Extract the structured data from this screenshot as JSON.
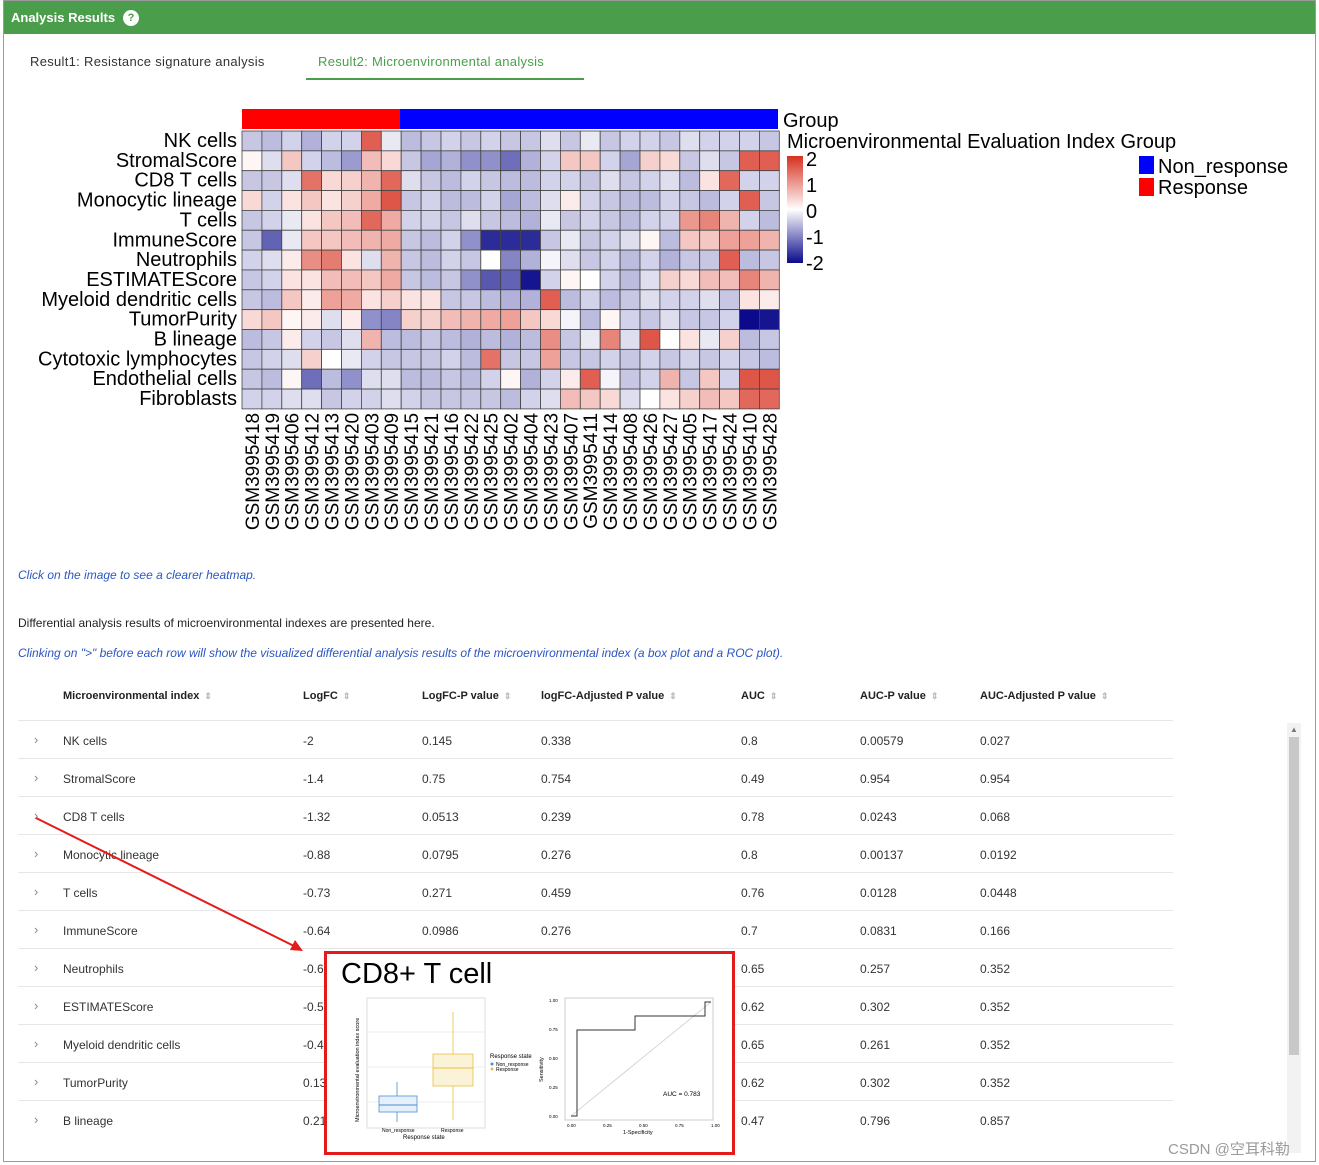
{
  "header": {
    "title": "Analysis Results",
    "help_icon": "?"
  },
  "tabs": [
    {
      "label": "Result1: Resistance signature analysis",
      "active": false
    },
    {
      "label": "Result2: Microenvironmental analysis",
      "active": true
    }
  ],
  "colors": {
    "accent": "#4a9e4b",
    "link": "#2b56c2",
    "response": "#ff0000",
    "non_response": "#0000ff",
    "callout_border": "#e31b1b"
  },
  "heatmap": {
    "group_title": "Group",
    "legend_title": "Microenvironmental Evaluation Index Group",
    "legend_ticks": [
      "2",
      "1",
      "0",
      "-1",
      "-2"
    ],
    "group_legend": [
      "Non_response",
      "Response"
    ],
    "rows": [
      "NK cells",
      "StromalScore",
      "CD8 T cells",
      "Monocytic lineage",
      "T cells",
      "ImmuneScore",
      "Neutrophils",
      "ESTIMATEScore",
      "Myeloid dendritic cells",
      "TumorPurity",
      "B lineage",
      "Cytotoxic lymphocytes",
      "Endothelial cells",
      "Fibroblasts"
    ],
    "columns": [
      "GSM3995418",
      "GSM3995419",
      "GSM3995406",
      "GSM3995412",
      "GSM3995413",
      "GSM3995420",
      "GSM3995403",
      "GSM3995409",
      "GSM3995415",
      "GSM3995421",
      "GSM3995416",
      "GSM3995422",
      "GSM3995425",
      "GSM3995402",
      "GSM3995404",
      "GSM3995423",
      "GSM3995407",
      "GSM3995411",
      "GSM3995414",
      "GSM3995408",
      "GSM3995426",
      "GSM3995427",
      "GSM3995405",
      "GSM3995417",
      "GSM3995424",
      "GSM3995410",
      "GSM3995428"
    ],
    "column_groups": [
      "Response",
      "Response",
      "Response",
      "Response",
      "Response",
      "Response",
      "Response",
      "Response",
      "Non_response",
      "Non_response",
      "Non_response",
      "Non_response",
      "Non_response",
      "Non_response",
      "Non_response",
      "Non_response",
      "Non_response",
      "Non_response",
      "Non_response",
      "Non_response",
      "Non_response",
      "Non_response",
      "Non_response",
      "Non_response",
      "Non_response",
      "Non_response",
      "Non_response"
    ],
    "values": [
      [
        -0.5,
        -0.6,
        -0.4,
        -0.7,
        -0.4,
        -0.4,
        1.7,
        -0.2,
        -0.6,
        -0.5,
        -0.4,
        -0.5,
        -0.4,
        -0.5,
        -0.5,
        -0.3,
        -0.5,
        -0.2,
        -0.5,
        -0.4,
        -0.4,
        -0.5,
        -0.3,
        -0.4,
        -0.4,
        -0.4,
        -0.5
      ],
      [
        0.1,
        -0.3,
        0.6,
        -0.4,
        -0.6,
        -0.9,
        0.7,
        0.4,
        -0.5,
        -0.8,
        -0.7,
        -1.0,
        -1.0,
        -1.3,
        -0.7,
        -0.4,
        0.6,
        0.6,
        -0.4,
        -0.8,
        0.5,
        0.4,
        -0.5,
        -0.3,
        -0.5,
        1.7,
        1.7
      ],
      [
        -0.5,
        -0.5,
        -0.3,
        1.5,
        0.4,
        0.5,
        0.8,
        1.6,
        -0.3,
        -0.5,
        -0.6,
        -0.4,
        -0.5,
        -0.6,
        -0.6,
        -0.4,
        -0.4,
        -0.5,
        -0.3,
        -0.5,
        -0.4,
        -0.3,
        -0.6,
        0.3,
        1.6,
        -0.4,
        -0.4
      ],
      [
        0.4,
        -0.4,
        0.3,
        0.6,
        0.3,
        0.5,
        0.9,
        1.8,
        -0.5,
        -0.4,
        -0.6,
        -0.6,
        -0.4,
        -0.8,
        -0.6,
        -0.3,
        0.2,
        -0.4,
        -0.5,
        -0.6,
        -0.6,
        -0.4,
        -0.5,
        -0.6,
        -0.4,
        1.7,
        -0.5
      ],
      [
        -0.5,
        -0.4,
        -0.2,
        0.3,
        0.6,
        0.7,
        1.6,
        0.9,
        -0.4,
        -0.4,
        -0.5,
        -0.3,
        -0.5,
        -0.6,
        -0.7,
        -0.2,
        -0.5,
        -0.4,
        -0.5,
        -0.6,
        -0.4,
        -0.4,
        1.1,
        1.3,
        0.8,
        -0.4,
        -0.6
      ],
      [
        -0.5,
        -1.4,
        -0.2,
        0.6,
        0.6,
        0.7,
        0.8,
        0.9,
        -0.5,
        -0.6,
        -0.4,
        -1.0,
        -1.9,
        -1.9,
        -1.9,
        -0.5,
        -0.2,
        -0.5,
        -0.4,
        -0.3,
        0.1,
        -0.6,
        0.6,
        0.6,
        1.0,
        1.0,
        0.8
      ],
      [
        -0.4,
        -0.3,
        0.2,
        1.2,
        1.4,
        0.3,
        -0.3,
        0.8,
        -0.5,
        -0.6,
        -0.4,
        -0.5,
        0.0,
        -1.1,
        -0.7,
        -0.1,
        -0.3,
        -0.5,
        -0.4,
        -0.6,
        -0.4,
        -0.7,
        -0.5,
        -0.5,
        1.7,
        -0.6,
        -0.5
      ],
      [
        -0.5,
        -0.4,
        0.3,
        0.3,
        0.7,
        0.7,
        0.6,
        0.9,
        -0.5,
        -0.6,
        -0.5,
        -1.0,
        -1.5,
        -1.4,
        -2.1,
        -0.4,
        0.1,
        0.0,
        -0.4,
        -0.6,
        -0.3,
        0.5,
        0.4,
        0.7,
        0.7,
        1.3,
        0.8
      ],
      [
        -0.5,
        -0.6,
        0.6,
        0.2,
        1.0,
        0.9,
        0.3,
        0.5,
        0.3,
        0.3,
        -0.5,
        -0.5,
        -0.6,
        -0.7,
        -0.7,
        1.7,
        -0.6,
        -0.4,
        -0.6,
        -0.5,
        -0.3,
        -0.4,
        -0.4,
        -0.3,
        -0.5,
        0.3,
        0.2
      ],
      [
        0.4,
        0.6,
        0.1,
        0.2,
        -0.3,
        0.2,
        -1.0,
        -1.1,
        0.5,
        0.5,
        0.7,
        0.8,
        0.9,
        1.0,
        0.6,
        0.4,
        -0.1,
        -0.6,
        0.1,
        -0.4,
        -0.5,
        -0.3,
        -0.5,
        -0.5,
        -0.4,
        -2.2,
        -2.1
      ],
      [
        -0.6,
        -0.5,
        0.2,
        -0.4,
        -0.5,
        -0.3,
        0.8,
        -0.6,
        -0.6,
        -0.5,
        -0.6,
        -0.7,
        -0.6,
        -0.7,
        -0.6,
        1.2,
        -0.5,
        -0.2,
        1.3,
        -0.3,
        1.8,
        0.0,
        0.3,
        -0.2,
        0.5,
        -0.6,
        -0.5
      ],
      [
        -0.5,
        -0.4,
        -0.3,
        0.5,
        0.0,
        -0.2,
        -0.4,
        -0.5,
        -0.5,
        -0.5,
        -0.4,
        -0.6,
        1.5,
        -0.5,
        -0.5,
        1.0,
        -0.5,
        -0.5,
        -0.4,
        -0.5,
        -0.4,
        -0.5,
        -0.4,
        -0.5,
        -0.4,
        -0.5,
        -0.6
      ],
      [
        -0.5,
        -0.6,
        0.1,
        -1.3,
        -0.6,
        -1.0,
        -0.3,
        -0.3,
        -0.6,
        -0.6,
        -0.5,
        -0.6,
        -0.4,
        0.1,
        -0.7,
        -0.4,
        0.2,
        1.7,
        -0.1,
        -0.5,
        -0.4,
        0.8,
        -0.5,
        0.6,
        -0.4,
        1.8,
        1.8
      ],
      [
        -0.4,
        -0.4,
        -0.3,
        -0.3,
        -0.5,
        -0.4,
        -0.4,
        -0.3,
        -0.4,
        -0.5,
        -0.5,
        -0.5,
        -0.5,
        -0.6,
        -0.4,
        -0.3,
        0.7,
        0.6,
        0.4,
        -0.3,
        0.0,
        0.3,
        0.5,
        0.7,
        0.6,
        1.6,
        1.6
      ]
    ]
  },
  "notes": {
    "click_image": "Click on the image to see a clearer heatmap.",
    "diff_intro": "Differential analysis results of microenvironmental indexes are presented here.",
    "clinking": "Clinking on \">\" before each row will show the visualized differential analysis results of the microenvironmental index (a box plot and a ROC plot)."
  },
  "table": {
    "headers": [
      "Microenvironmental index",
      "LogFC",
      "LogFC-P value",
      "logFC-Adjusted P value",
      "AUC",
      "AUC-P value",
      "AUC-Adjusted P value"
    ],
    "expand_icon": "›",
    "sort_icon": "⇕",
    "rows": [
      [
        "NK cells",
        "-2",
        "0.145",
        "0.338",
        "0.8",
        "0.00579",
        "0.027"
      ],
      [
        "StromalScore",
        "-1.4",
        "0.75",
        "0.754",
        "0.49",
        "0.954",
        "0.954"
      ],
      [
        "CD8 T cells",
        "-1.32",
        "0.0513",
        "0.239",
        "0.78",
        "0.0243",
        "0.068"
      ],
      [
        "Monocytic lineage",
        "-0.88",
        "0.0795",
        "0.276",
        "0.8",
        "0.00137",
        "0.0192"
      ],
      [
        "T cells",
        "-0.73",
        "0.271",
        "0.459",
        "0.76",
        "0.0128",
        "0.0448"
      ],
      [
        "ImmuneScore",
        "-0.64",
        "0.0986",
        "0.276",
        "0.7",
        "0.0831",
        "0.166"
      ],
      [
        "Neutrophils",
        "-0.6",
        "",
        "",
        "0.65",
        "0.257",
        "0.352"
      ],
      [
        "ESTIMATEScore",
        "-0.5",
        "",
        "",
        "0.62",
        "0.302",
        "0.352"
      ],
      [
        "Myeloid dendritic cells",
        "-0.4",
        "",
        "",
        "0.65",
        "0.261",
        "0.352"
      ],
      [
        "TumorPurity",
        "0.13",
        "",
        "",
        "0.62",
        "0.302",
        "0.352"
      ],
      [
        "B lineage",
        "0.21",
        "",
        "",
        "0.47",
        "0.796",
        "0.857"
      ]
    ]
  },
  "callout": {
    "title": "CD8+ T cell",
    "box_ylabel": "Microenvironmental evaluation index score",
    "box_xlabel": "Response state",
    "box_categories": [
      "Non_response",
      "Response"
    ],
    "box_legend_title": "Response state",
    "box_legend_items": [
      "Non_response",
      "Response"
    ],
    "roc_ylabel": "Sensitivity",
    "roc_xlabel": "1-Specificity",
    "roc_ticks": [
      "0.00",
      "0.25",
      "0.50",
      "0.75",
      "1.00"
    ],
    "auc_label": "AUC = 0.783"
  },
  "watermark": "CSDN @空耳科勒"
}
